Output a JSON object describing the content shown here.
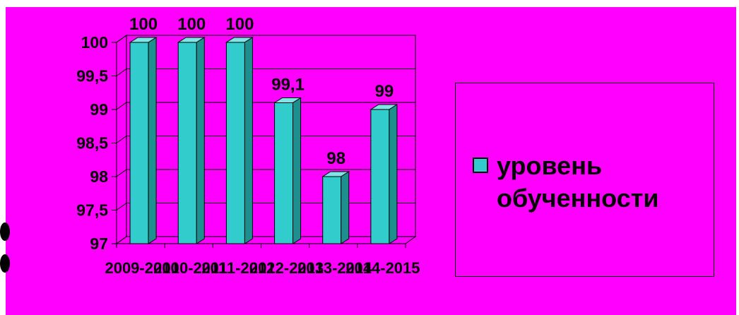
{
  "chart_data": {
    "type": "bar",
    "categories": [
      "2009-2010",
      "2010-2011",
      "2011-2012",
      "2012-2013",
      "2013-2014",
      "2014-2015"
    ],
    "series": [
      {
        "name": "уровень обученности",
        "values": [
          100,
          100,
          100,
          99.1,
          98,
          99
        ],
        "color": "#33cccc"
      }
    ],
    "data_labels": [
      "100",
      "100",
      "100",
      "99,1",
      "98",
      "99"
    ],
    "y_ticks": [
      "97",
      "97,5",
      "98",
      "98,5",
      "99",
      "99,5",
      "100"
    ],
    "ylim": [
      97,
      100
    ],
    "grid": true,
    "legend_position": "right",
    "background_color": "#ff00ff",
    "style": "3d-columns"
  },
  "legend": {
    "line1": "уровень",
    "line2": "обученности"
  }
}
